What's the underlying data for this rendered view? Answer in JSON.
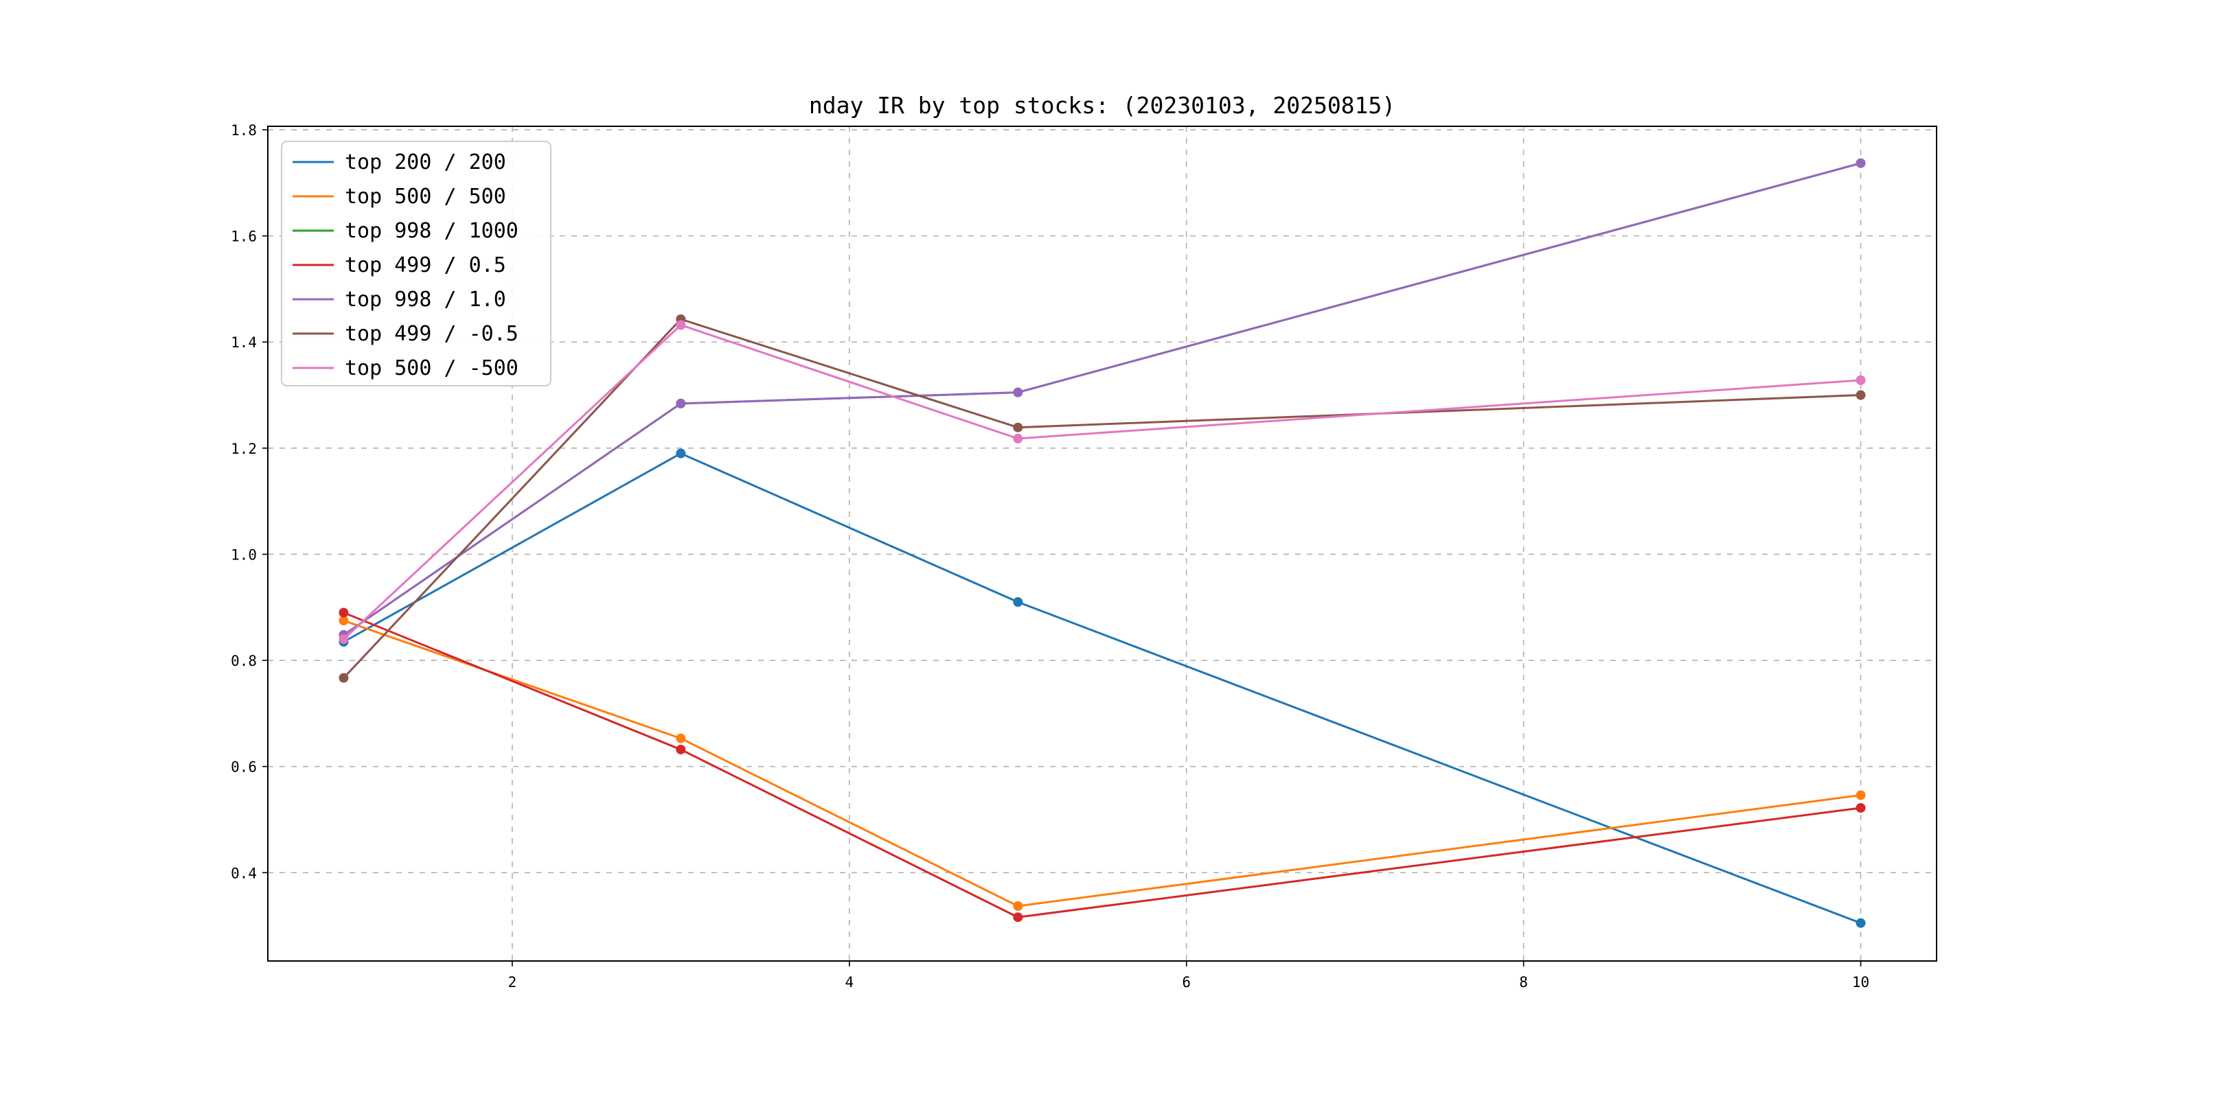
{
  "chart_data": {
    "type": "line",
    "title": "nday IR by top stocks: (20230103, 20250815)",
    "xlabel": "",
    "ylabel": "",
    "x": [
      1,
      3,
      5,
      10
    ],
    "series": [
      {
        "name": "top 200 / 200",
        "color": "#1f77b4",
        "values": [
          0.835,
          1.19,
          0.91,
          0.305
        ]
      },
      {
        "name": "top 500 / 500",
        "color": "#ff7f0e",
        "values": [
          0.875,
          0.653,
          0.337,
          0.546
        ]
      },
      {
        "name": "top 998 / 1000",
        "color": "#2ca02c",
        "values": [
          0.848,
          1.284,
          1.305,
          1.737
        ]
      },
      {
        "name": "top 499 / 0.5",
        "color": "#d62728",
        "values": [
          0.89,
          0.632,
          0.316,
          0.522
        ]
      },
      {
        "name": "top 998 / 1.0",
        "color": "#9467bd",
        "values": [
          0.848,
          1.284,
          1.305,
          1.737
        ]
      },
      {
        "name": "top 499 / -0.5",
        "color": "#8c564b",
        "values": [
          0.767,
          1.443,
          1.239,
          1.3
        ]
      },
      {
        "name": "top 500 / -500",
        "color": "#e377c2",
        "values": [
          0.84,
          1.432,
          1.218,
          1.328
        ]
      }
    ],
    "xticks": [
      2,
      4,
      6,
      8,
      10
    ],
    "xtick_labels": [
      "2",
      "4",
      "6",
      "8",
      "10"
    ],
    "yticks": [
      0.4,
      0.6,
      0.8,
      1.0,
      1.2,
      1.4,
      1.6,
      1.8
    ],
    "ytick_labels": [
      "0.4",
      "0.6",
      "0.8",
      "1.0",
      "1.2",
      "1.4",
      "1.6",
      "1.8"
    ],
    "xlim": [
      0.55,
      10.45
    ],
    "ylim": [
      0.2335,
      1.8065
    ],
    "grid": true,
    "grid_style": "dashed",
    "grid_color": "#b0b0b0",
    "marker": "o",
    "legend_position": "upper left",
    "frame_color": "#000000",
    "background_color": "#ffffff"
  }
}
